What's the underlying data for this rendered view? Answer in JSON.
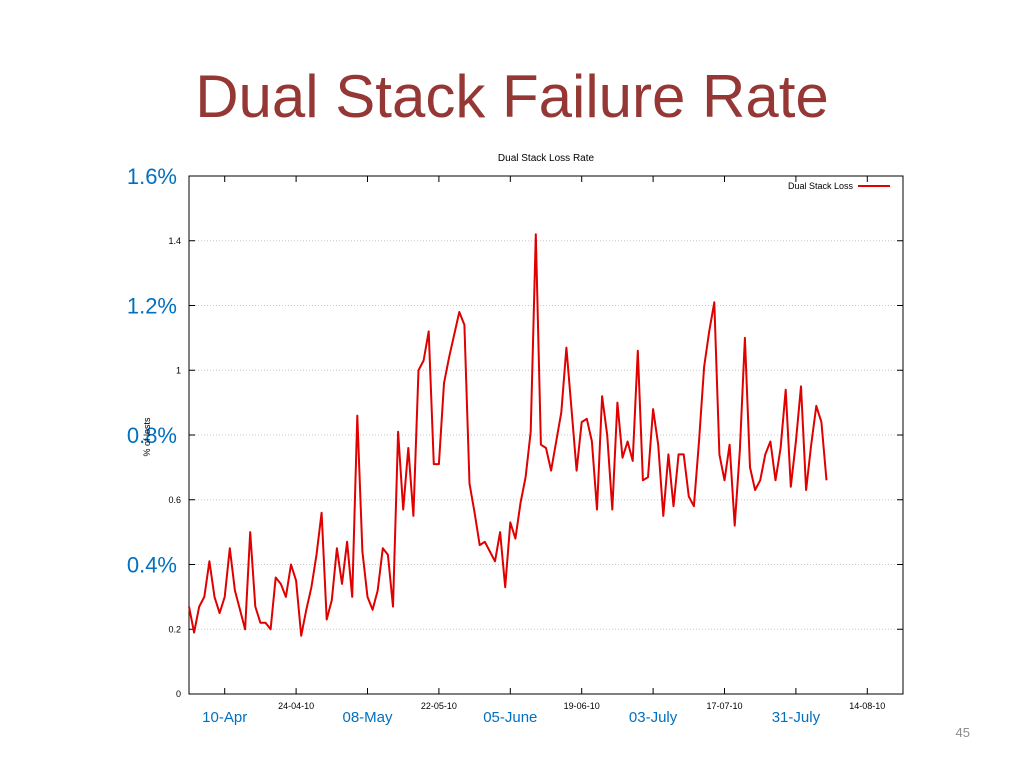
{
  "slide": {
    "title": "Dual Stack Failure Rate",
    "page_number": "45"
  },
  "colors": {
    "title": "#953735",
    "series": "#e00000",
    "overlay_labels": "#0070c0",
    "grid": "#c8c8c8"
  },
  "overlay": {
    "y_labels": [
      {
        "text": "1.6%",
        "value": 1.6
      },
      {
        "text": "1.2%",
        "value": 1.2
      },
      {
        "text": "0.8%",
        "value": 0.8
      },
      {
        "text": "0.4%",
        "value": 0.4
      }
    ],
    "x_labels": [
      {
        "text": "10-Apr",
        "day": -10
      },
      {
        "text": "08-May",
        "day": 18
      },
      {
        "text": "05-June",
        "day": 46
      },
      {
        "text": "03-July",
        "day": 74
      },
      {
        "text": "31-July",
        "day": 102
      }
    ]
  },
  "chart_data": {
    "type": "line",
    "title": "Dual Stack Loss Rate",
    "ylabel": "% of losts",
    "legend": {
      "label": "Dual Stack Loss",
      "position": "top-right"
    },
    "ylim": [
      0,
      1.6
    ],
    "y_ticks": [
      {
        "label": "0",
        "value": 0
      },
      {
        "label": "0.2",
        "value": 0.2
      },
      {
        "label": "0.6",
        "value": 0.6
      },
      {
        "label": "1",
        "value": 1.0
      },
      {
        "label": "1.4",
        "value": 1.4
      }
    ],
    "x_ticks": [
      {
        "label": "24-04-10",
        "day": 4
      },
      {
        "label": "22-05-10",
        "day": 32
      },
      {
        "label": "19-06-10",
        "day": 60
      },
      {
        "label": "17-07-10",
        "day": 88
      },
      {
        "label": "14-08-10",
        "day": 116
      }
    ],
    "xlim_days": [
      -17,
      123
    ],
    "grid": true,
    "series": [
      {
        "name": "Dual Stack Loss",
        "x_start_day": -17,
        "x_step_days": 1,
        "values": [
          0.27,
          0.19,
          0.27,
          0.3,
          0.41,
          0.3,
          0.25,
          0.3,
          0.45,
          0.32,
          0.26,
          0.2,
          0.5,
          0.27,
          0.22,
          0.22,
          0.2,
          0.36,
          0.34,
          0.3,
          0.4,
          0.35,
          0.18,
          0.26,
          0.33,
          0.43,
          0.56,
          0.23,
          0.29,
          0.45,
          0.34,
          0.47,
          0.3,
          0.86,
          0.44,
          0.3,
          0.26,
          0.32,
          0.45,
          0.43,
          0.27,
          0.81,
          0.57,
          0.76,
          0.55,
          1.0,
          1.03,
          1.12,
          0.71,
          0.71,
          0.96,
          1.04,
          1.11,
          1.18,
          1.14,
          0.65,
          0.56,
          0.46,
          0.47,
          0.44,
          0.41,
          0.5,
          0.33,
          0.53,
          0.48,
          0.59,
          0.67,
          0.81,
          1.42,
          0.77,
          0.76,
          0.69,
          0.78,
          0.87,
          1.07,
          0.88,
          0.69,
          0.84,
          0.85,
          0.78,
          0.57,
          0.92,
          0.8,
          0.57,
          0.9,
          0.73,
          0.78,
          0.72,
          1.06,
          0.66,
          0.67,
          0.88,
          0.77,
          0.55,
          0.74,
          0.58,
          0.74,
          0.74,
          0.61,
          0.58,
          0.78,
          1.01,
          1.12,
          1.21,
          0.74,
          0.66,
          0.77,
          0.52,
          0.75,
          1.1,
          0.7,
          0.63,
          0.66,
          0.74,
          0.78,
          0.66,
          0.76,
          0.94,
          0.64,
          0.78,
          0.95,
          0.63,
          0.77,
          0.89,
          0.84,
          0.66
        ]
      }
    ]
  }
}
